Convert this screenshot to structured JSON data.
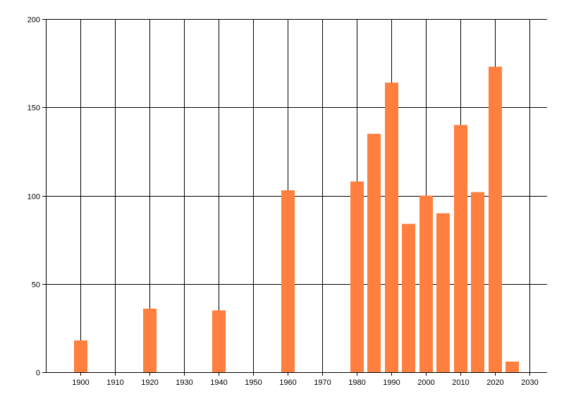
{
  "chart_data": {
    "type": "bar",
    "title": "",
    "xlabel": "",
    "ylabel": "",
    "xlim": [
      1890,
      2035
    ],
    "ylim": [
      0,
      200
    ],
    "x_ticks": [
      1900,
      1910,
      1920,
      1930,
      1940,
      1950,
      1960,
      1970,
      1980,
      1990,
      2000,
      2010,
      2020,
      2030
    ],
    "y_ticks": [
      0,
      50,
      100,
      150,
      200
    ],
    "grid": true,
    "bar_color": "#FF7F3F",
    "series": [
      {
        "x": [
          1900,
          1920,
          1940,
          1960,
          1980,
          1985,
          1990,
          1995,
          2000,
          2005,
          2010,
          2015,
          2020,
          2025
        ],
        "values": [
          18,
          36,
          35,
          103,
          108,
          135,
          164,
          84,
          100,
          90,
          140,
          102,
          173,
          6
        ]
      }
    ]
  }
}
